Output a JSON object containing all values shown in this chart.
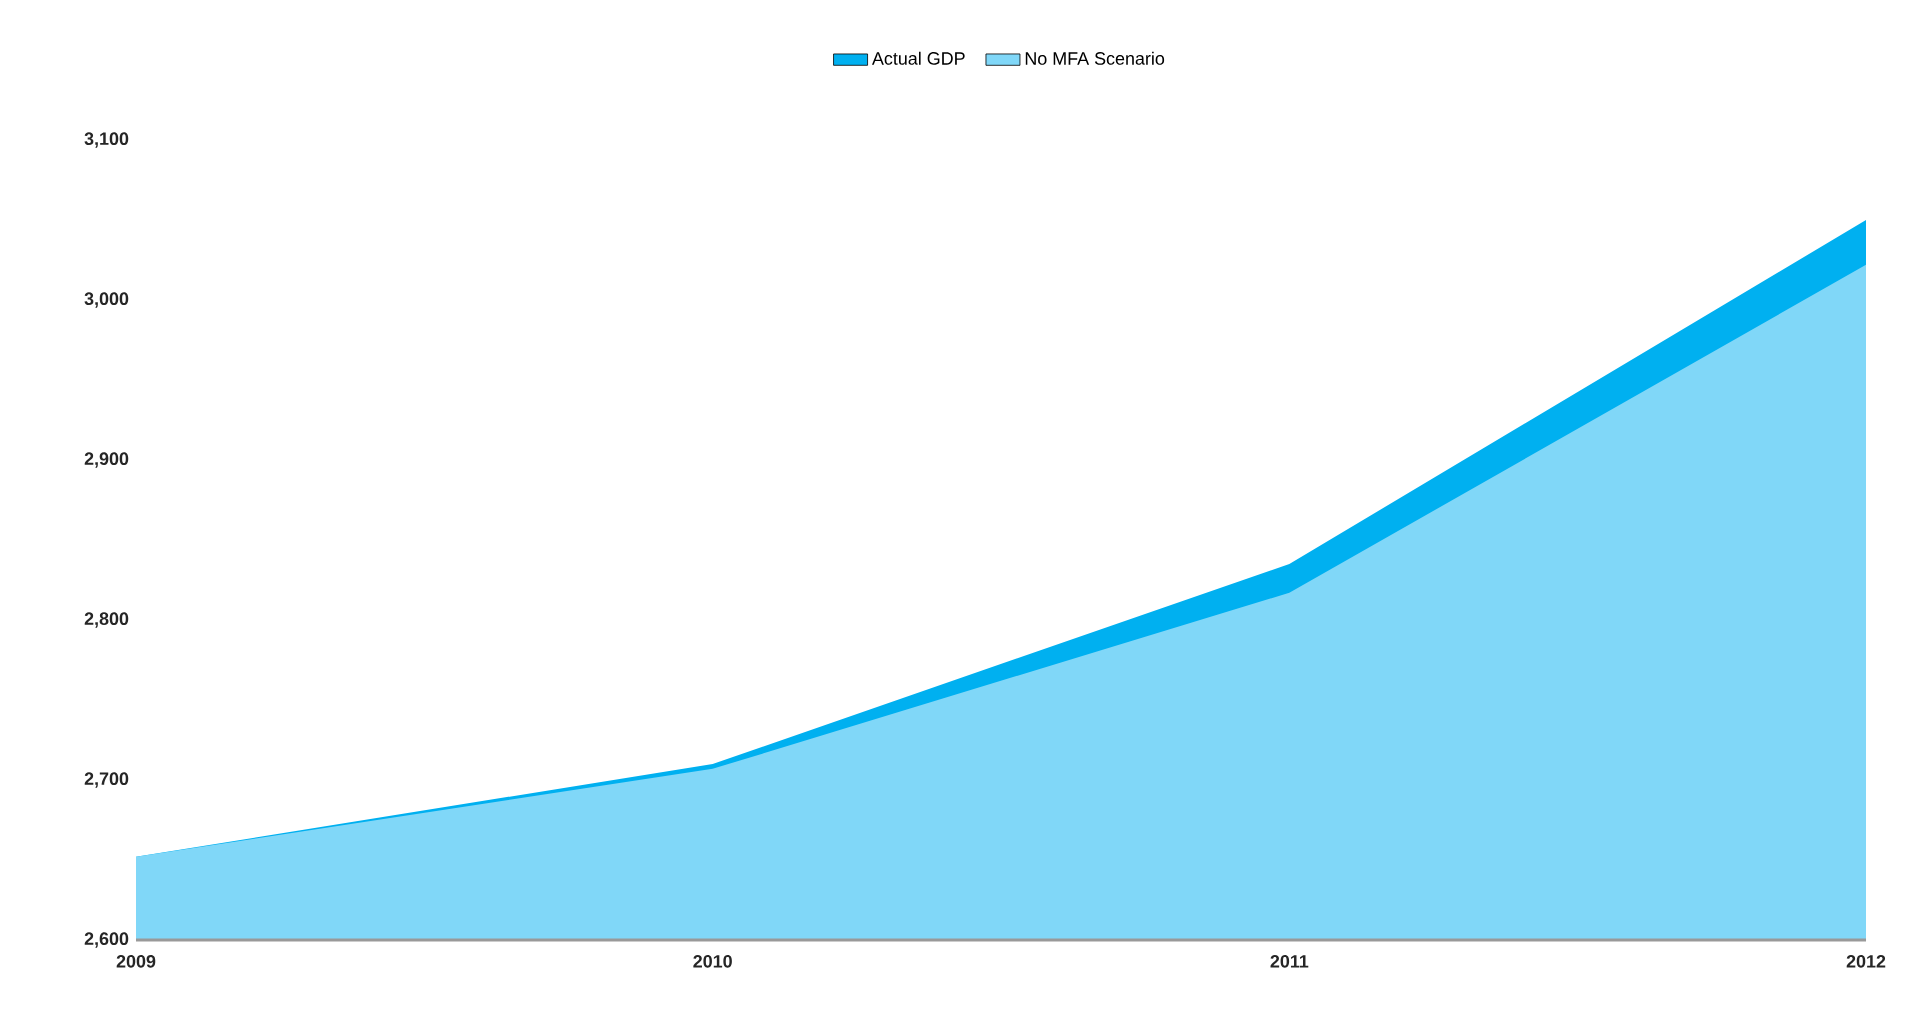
{
  "chart_data": {
    "type": "area",
    "categories": [
      "2009",
      "2010",
      "2011",
      "2012"
    ],
    "series": [
      {
        "name": "Actual GDP",
        "color": "#00b0f0",
        "values": [
          2652,
          2710,
          2835,
          3050
        ]
      },
      {
        "name": "No MFA Scenario",
        "color": "#80d7f8",
        "values": [
          2652,
          2707,
          2817,
          3022
        ]
      }
    ],
    "ylim": [
      2600,
      3100
    ],
    "yticks": [
      {
        "value": 2600,
        "label": "2,600"
      },
      {
        "value": 2700,
        "label": "2,700"
      },
      {
        "value": 2800,
        "label": "2,800"
      },
      {
        "value": 2900,
        "label": "2,900"
      },
      {
        "value": 3000,
        "label": "3,000"
      },
      {
        "value": 3100,
        "label": "3,100"
      }
    ],
    "grid": false,
    "legend": "top"
  }
}
